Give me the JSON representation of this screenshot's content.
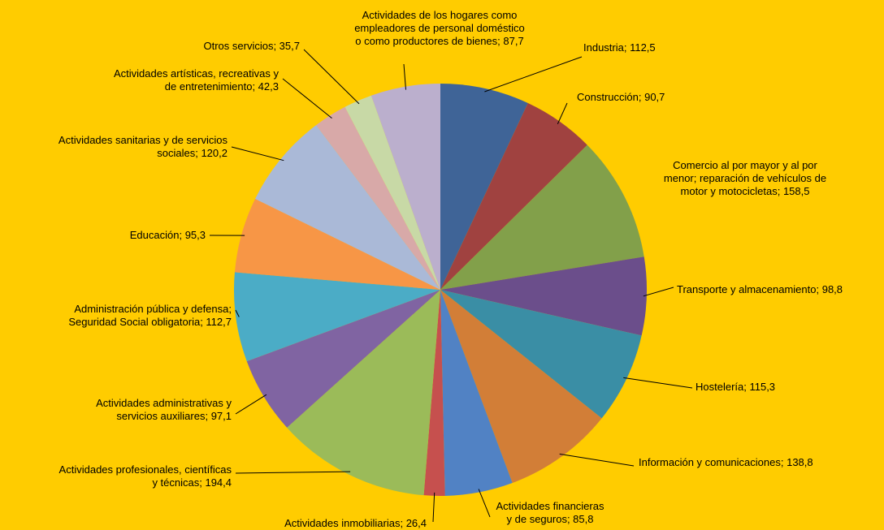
{
  "chart_data": {
    "type": "pie",
    "legend": "none",
    "slices": [
      {
        "name": "Industria",
        "value": 112.5,
        "label_lines": [
          "Industria; 112,5"
        ],
        "color": "#3F6497"
      },
      {
        "name": "Construcción",
        "value": 90.7,
        "label_lines": [
          "Construcción; 90,7"
        ],
        "color": "#A04240"
      },
      {
        "name": "Comercio al por mayor y al por menor; reparación de vehículos de motor y motocicletas",
        "value": 158.5,
        "label_lines": [
          "Comercio al por mayor y al por",
          "menor; reparación de vehículos de",
          "motor y motocicletas; 158,5"
        ],
        "color": "#82A04A"
      },
      {
        "name": "Transporte y almacenamiento",
        "value": 98.8,
        "label_lines": [
          "Transporte y almacenamiento; 98,8"
        ],
        "color": "#6B4E8B"
      },
      {
        "name": "Hostelería",
        "value": 115.3,
        "label_lines": [
          "Hostelería; 115,3"
        ],
        "color": "#3A8EA5"
      },
      {
        "name": "Información y comunicaciones",
        "value": 138.8,
        "label_lines": [
          "Información y comunicaciones; 138,8"
        ],
        "color": "#D27E37"
      },
      {
        "name": "Actividades financieras y de seguros",
        "value": 85.8,
        "label_lines": [
          "Actividades financieras",
          "y de seguros; 85,8"
        ],
        "color": "#5182C4"
      },
      {
        "name": "Actividades inmobiliarias",
        "value": 26.4,
        "label_lines": [
          "Actividades inmobiliarias; 26,4"
        ],
        "color": "#C6504E"
      },
      {
        "name": "Actividades profesionales, científicas y técnicas",
        "value": 194.4,
        "label_lines": [
          "Actividades profesionales, científicas",
          "y técnicas; 194,4"
        ],
        "color": "#9BBB59"
      },
      {
        "name": "Actividades administrativas y servicios auxiliares",
        "value": 97.1,
        "label_lines": [
          "Actividades administrativas y",
          "servicios auxiliares; 97,1"
        ],
        "color": "#8064A2"
      },
      {
        "name": "Administración pública y defensa; Seguridad Social obligatoria",
        "value": 112.7,
        "label_lines": [
          "Administración pública y defensa;",
          "Seguridad Social obligatoria; 112,7"
        ],
        "color": "#4BACC6"
      },
      {
        "name": "Educación",
        "value": 95.3,
        "label_lines": [
          "Educación; 95,3"
        ],
        "color": "#F79646"
      },
      {
        "name": "Actividades sanitarias y de servicios sociales",
        "value": 120.2,
        "label_lines": [
          "Actividades sanitarias y de servicios",
          "sociales; 120,2"
        ],
        "color": "#AAB9D7"
      },
      {
        "name": "Actividades artísticas, recreativas y de entretenimiento",
        "value": 42.3,
        "label_lines": [
          "Actividades artísticas, recreativas y",
          "de entretenimiento; 42,3"
        ],
        "color": "#D8A9A8"
      },
      {
        "name": "Otros servicios",
        "value": 35.7,
        "label_lines": [
          "Otros servicios; 35,7"
        ],
        "color": "#C8D9A6"
      },
      {
        "name": "Actividades de los hogares como empleadores de personal doméstico o como productores de bienes",
        "value": 87.7,
        "label_lines": [
          "Actividades de los hogares como",
          "empleadores de personal doméstico",
          "o como productores de bienes; 87,7"
        ],
        "color": "#BBAFCD"
      }
    ]
  }
}
